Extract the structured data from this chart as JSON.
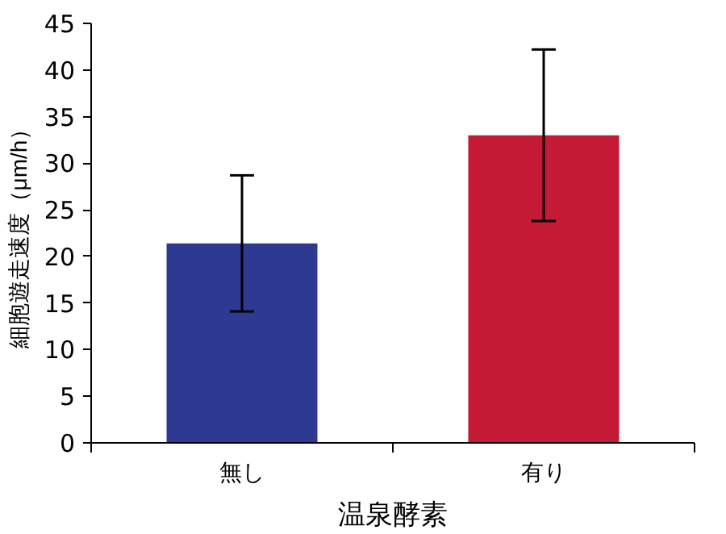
{
  "chart_data": {
    "type": "bar",
    "xlabel": "温泉酵素",
    "ylabel": "細胞遊走速度（μm/h）",
    "categories": [
      "無し",
      "有り"
    ],
    "values": [
      21.4,
      33.0
    ],
    "colors": [
      "#2e3a92",
      "#c41a35"
    ],
    "errors": [
      [
        14.1,
        28.7
      ],
      [
        23.8,
        42.2
      ]
    ],
    "ylim": [
      0,
      45
    ],
    "yticks": [
      0,
      5,
      10,
      15,
      20,
      25,
      30,
      35,
      40,
      45
    ],
    "grid": false
  }
}
